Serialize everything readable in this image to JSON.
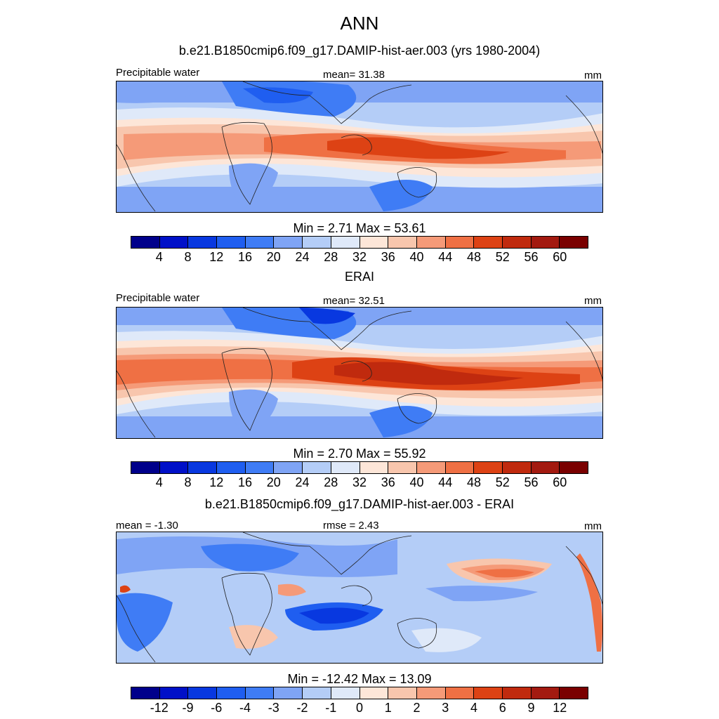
{
  "header": {
    "title": "ANN",
    "subtitle": "b.e21.B1850cmip6.f09_g17.DAMIP-hist-aer.003 (yrs 1980-2004)"
  },
  "panels": [
    {
      "left_label": "Precipitable water",
      "center_label": "mean=  31.38",
      "units": "mm",
      "minmax": "Min =   2.71 Max =  53.61",
      "ticks": [
        "4",
        "8",
        "12",
        "16",
        "20",
        "24",
        "28",
        "32",
        "36",
        "40",
        "44",
        "48",
        "52",
        "56",
        "60"
      ],
      "colors": [
        "#00008b",
        "#0010c8",
        "#0838e0",
        "#1f5ef0",
        "#3f7cf5",
        "#7fa4f5",
        "#b4cdf7",
        "#dfe9f9",
        "#fde6d8",
        "#f8c6ad",
        "#f59a78",
        "#ef7044",
        "#dd4214",
        "#c02a0e",
        "#a31a10",
        "#7a0000"
      ],
      "mean_value": 31.38
    },
    {
      "title": "ERAI",
      "left_label": "Precipitable water",
      "center_label": "mean=  32.51",
      "units": "mm",
      "minmax": "Min =   2.70 Max =  55.92",
      "ticks": [
        "4",
        "8",
        "12",
        "16",
        "20",
        "24",
        "28",
        "32",
        "36",
        "40",
        "44",
        "48",
        "52",
        "56",
        "60"
      ],
      "colors": [
        "#00008b",
        "#0010c8",
        "#0838e0",
        "#1f5ef0",
        "#3f7cf5",
        "#7fa4f5",
        "#b4cdf7",
        "#dfe9f9",
        "#fde6d8",
        "#f8c6ad",
        "#f59a78",
        "#ef7044",
        "#dd4214",
        "#c02a0e",
        "#a31a10",
        "#7a0000"
      ],
      "mean_value": 32.51
    },
    {
      "title": "b.e21.B1850cmip6.f09_g17.DAMIP-hist-aer.003 - ERAI",
      "left_label": "mean =  -1.30",
      "center_label": "rmse =   2.43",
      "units": "mm",
      "minmax": "Min = -12.42 Max =  13.09",
      "ticks": [
        "-12",
        "-9",
        "-6",
        "-4",
        "-3",
        "-2",
        "-1",
        "0",
        "1",
        "2",
        "3",
        "4",
        "6",
        "9",
        "12"
      ],
      "colors": [
        "#00008b",
        "#0010c8",
        "#0838e0",
        "#1f5ef0",
        "#3f7cf5",
        "#7fa4f5",
        "#b4cdf7",
        "#dfe9f9",
        "#fde6d8",
        "#f8c6ad",
        "#f59a78",
        "#ef7044",
        "#dd4214",
        "#c02a0e",
        "#a31a10",
        "#7a0000"
      ],
      "mean_value": -1.3
    }
  ]
}
